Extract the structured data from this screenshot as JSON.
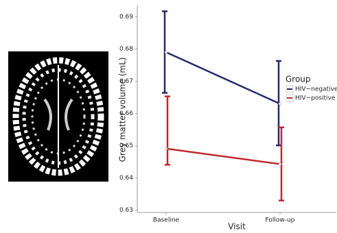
{
  "chart_data": {
    "type": "line",
    "y_label": "Grey matter volume (mL)",
    "x_label": "Visit",
    "categories": [
      "Baseline",
      "Follow-up"
    ],
    "legend_title": "Group",
    "series": [
      {
        "name": "HIV−negative",
        "color": "#262a6b",
        "values": [
          0.679,
          0.663
        ],
        "lower": [
          0.6664,
          0.6501
        ],
        "upper": [
          0.6917,
          0.6763
        ]
      },
      {
        "name": "HIV−positive",
        "color": "#c0282b",
        "values": [
          0.6491,
          0.6443
        ],
        "lower": [
          0.6441,
          0.633
        ],
        "upper": [
          0.6653,
          0.6557
        ]
      }
    ],
    "ylim": [
      0.6293,
      0.6935
    ],
    "yticks": [
      0.63,
      0.64,
      0.65,
      0.66,
      0.67,
      0.68,
      0.69
    ],
    "legend_position": "right"
  }
}
